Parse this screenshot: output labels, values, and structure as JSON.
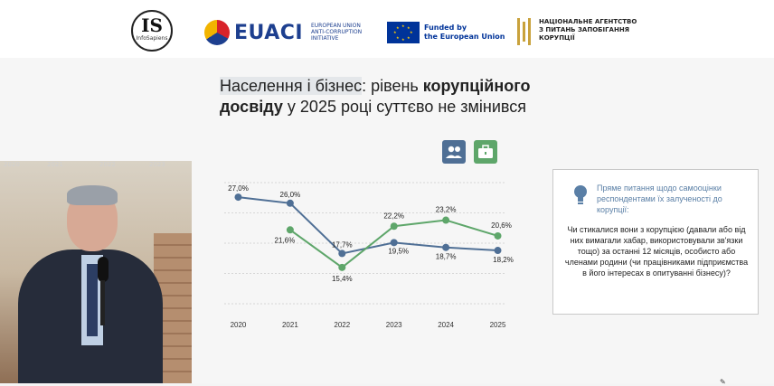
{
  "header": {
    "logo_is": {
      "big": "IS",
      "small": "InfoSapiens"
    },
    "logo_euaci": {
      "name": "EUACI",
      "sub": "EUROPEAN UNION ANTI-CORRUPTION INITIATIVE"
    },
    "logo_eu": {
      "line1": "Funded by",
      "line2": "the European Union"
    },
    "logo_nazk": {
      "line1": "НАЦІОНАЛЬНЕ АГЕНТСТВО",
      "line2": "З ПИТАНЬ ЗАПОБІГАННЯ",
      "line3": "КОРУПЦІЇ"
    }
  },
  "slide": {
    "title_part1": "Населення і бізнес",
    "title_part2": ": рівень ",
    "title_bold1": "корупційного",
    "title_bold2": "досвіду",
    "title_part3": " у 2025 році суттєво не змінився",
    "background_years": [
      "2020",
      "2021",
      "2022",
      "2023"
    ]
  },
  "icons": {
    "population": {
      "name": "people-icon",
      "color": "#4f6f95"
    },
    "business": {
      "name": "briefcase-icon",
      "color": "#5ea66a"
    }
  },
  "question_box": {
    "header": "Пряме питання щодо самооцінки респондентами їх залученості до корупції:",
    "body": "Чи стикалися вони з корупцією (давали або від них вимагали хабар, використовували зв'язки тощо) за останні 12 місяців, особисто або членами родини (чи працівниками підприємства в його інтересах в опитуванні бізнесу)?",
    "icon": "lightbulb-icon"
  },
  "chart_data": {
    "type": "line",
    "x": [
      "2020",
      "2021",
      "2022",
      "2023",
      "2024",
      "2025"
    ],
    "ylim": [
      10,
      30
    ],
    "grid": true,
    "series": [
      {
        "key": "population",
        "color": "#4f6f95",
        "values": [
          27.0,
          26.0,
          17.7,
          19.5,
          18.7,
          18.2
        ],
        "labels": [
          "27,0%",
          "26,0%",
          "17,7%",
          "19,5%",
          "18,7%",
          "18,2%"
        ]
      },
      {
        "key": "business",
        "color": "#5ea66a",
        "values": [
          null,
          21.6,
          15.4,
          22.2,
          23.2,
          20.6
        ],
        "labels": [
          null,
          "21,6%",
          "15,4%",
          "22,2%",
          "23,2%",
          "20,6%"
        ]
      }
    ]
  }
}
